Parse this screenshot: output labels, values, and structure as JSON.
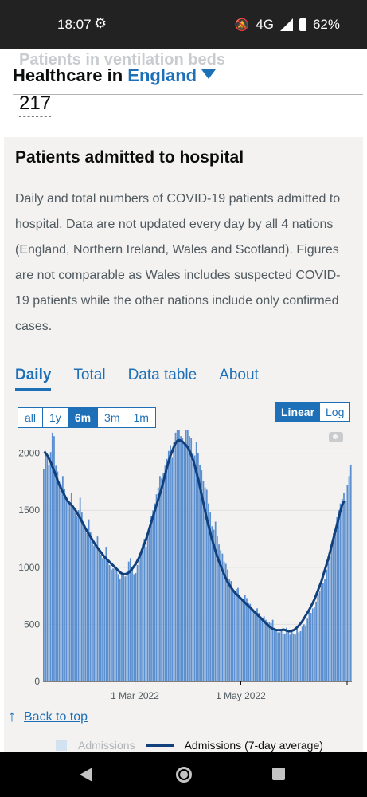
{
  "status_bar": {
    "time": "18:07",
    "network": "4G",
    "battery": "62%",
    "icons": [
      "gear-icon",
      "bell-off-icon",
      "signal-icon",
      "battery-icon"
    ]
  },
  "header": {
    "ghost_title": "Patients in ventilation beds",
    "prefix": "Healthcare in",
    "area": "England",
    "vent_value": "217"
  },
  "card": {
    "title": "Patients admitted to hospital",
    "description": "Daily and total numbers of COVID-19 patients admitted to hospital. Data are not updated every day by all 4 nations (England, Northern Ireland, Wales and Scotland). Figures are not comparable as Wales includes suspected COVID-19 patients while the other nations include only confirmed cases.",
    "tabs": [
      "Daily",
      "Total",
      "Data table",
      "About"
    ],
    "active_tab": "Daily",
    "range_buttons": [
      "all",
      "1y",
      "6m",
      "3m",
      "1m"
    ],
    "selected_range": "6m",
    "scale_buttons": [
      "Linear",
      "Log"
    ],
    "selected_scale": "Linear"
  },
  "chart_data": {
    "type": "bar",
    "title": "",
    "xlabel": "",
    "ylabel": "",
    "ylim": [
      0,
      2200
    ],
    "y_ticks": [
      0,
      500,
      1000,
      1500,
      2000
    ],
    "x_tick_labels": [
      "1 Mar 2022",
      "1 May 2022"
    ],
    "x_tick_index": [
      53,
      114
    ],
    "grid": true,
    "series": [
      {
        "name": "Admissions",
        "values": [
          1860,
          2020,
          1980,
          1900,
          2010,
          2180,
          2150,
          1890,
          1840,
          1750,
          1720,
          1800,
          1690,
          1620,
          1580,
          1560,
          1650,
          1540,
          1490,
          1450,
          1500,
          1610,
          1480,
          1380,
          1350,
          1300,
          1420,
          1310,
          1250,
          1190,
          1200,
          1270,
          1170,
          1110,
          1080,
          1090,
          1180,
          1060,
          1020,
          980,
          990,
          1010,
          980,
          940,
          900,
          950,
          930,
          920,
          960,
          1050,
          1080,
          1000,
          940,
          950,
          1020,
          1120,
          1140,
          1200,
          1250,
          1180,
          1280,
          1340,
          1450,
          1500,
          1560,
          1640,
          1700,
          1800,
          1780,
          1830,
          1890,
          1950,
          2020,
          2070,
          1960,
          2100,
          2180,
          2290,
          2200,
          2150,
          2130,
          2080,
          2220,
          2270,
          2150,
          2130,
          2000,
          1980,
          2100,
          2000,
          1900,
          1850,
          1760,
          1700,
          1680,
          1560,
          1480,
          1360,
          1330,
          1400,
          1270,
          1200,
          1150,
          1120,
          1050,
          1030,
          980,
          900,
          880,
          800,
          780,
          810,
          820,
          740,
          720,
          700,
          760,
          730,
          690,
          680,
          640,
          620,
          620,
          640,
          600,
          570,
          560,
          570,
          540,
          520,
          520,
          510,
          540,
          470,
          440,
          430,
          430,
          450,
          420,
          420,
          470,
          430,
          410,
          440,
          420,
          410,
          460,
          430,
          440,
          480,
          500,
          490,
          550,
          620,
          600,
          640,
          650,
          700,
          760,
          790,
          840,
          860,
          900,
          980,
          1040,
          1100,
          1200,
          1300,
          1320,
          1440,
          1500,
          1560,
          1600,
          1650,
          1580,
          1720,
          1800,
          1900
        ]
      },
      {
        "name": "Admissions (7-day average)",
        "values": [
          2010,
          2000,
          1980,
          1950,
          1920,
          1880,
          1840,
          1800,
          1760,
          1720,
          1690,
          1660,
          1630,
          1600,
          1575,
          1560,
          1545,
          1525,
          1505,
          1480,
          1455,
          1430,
          1400,
          1370,
          1340,
          1315,
          1290,
          1265,
          1240,
          1215,
          1190,
          1170,
          1150,
          1130,
          1110,
          1090,
          1075,
          1060,
          1045,
          1030,
          1015,
          1000,
          985,
          970,
          955,
          945,
          940,
          940,
          945,
          955,
          970,
          990,
          1010,
          1030,
          1060,
          1090,
          1130,
          1170,
          1210,
          1250,
          1300,
          1350,
          1400,
          1450,
          1500,
          1550,
          1600,
          1650,
          1700,
          1760,
          1820,
          1880,
          1930,
          1980,
          2020,
          2060,
          2090,
          2110,
          2115,
          2110,
          2100,
          2085,
          2070,
          2050,
          2020,
          1980,
          1940,
          1890,
          1830,
          1770,
          1700,
          1630,
          1560,
          1490,
          1420,
          1360,
          1300,
          1240,
          1190,
          1140,
          1090,
          1050,
          1010,
          970,
          935,
          900,
          870,
          845,
          820,
          800,
          780,
          765,
          750,
          735,
          720,
          705,
          690,
          675,
          660,
          645,
          630,
          615,
          600,
          585,
          570,
          555,
          540,
          525,
          510,
          495,
          480,
          470,
          460,
          455,
          450,
          450,
          450,
          450,
          455,
          450,
          445,
          440,
          440,
          445,
          450,
          460,
          475,
          490,
          510,
          530,
          555,
          580,
          605,
          630,
          660,
          690,
          720,
          760,
          800,
          840,
          880,
          930,
          980,
          1030,
          1080,
          1140,
          1200,
          1260,
          1320,
          1380,
          1440,
          1500,
          1550,
          1580
        ]
      }
    ]
  },
  "footer": {
    "back_to_top": "Back to top",
    "legend": [
      "Admissions",
      "Admissions (7-day average)"
    ]
  },
  "colors": {
    "link": "#1d70b8",
    "bar": "#5b8fcf",
    "line": "#12407d",
    "card_bg": "#f3f2f1"
  }
}
